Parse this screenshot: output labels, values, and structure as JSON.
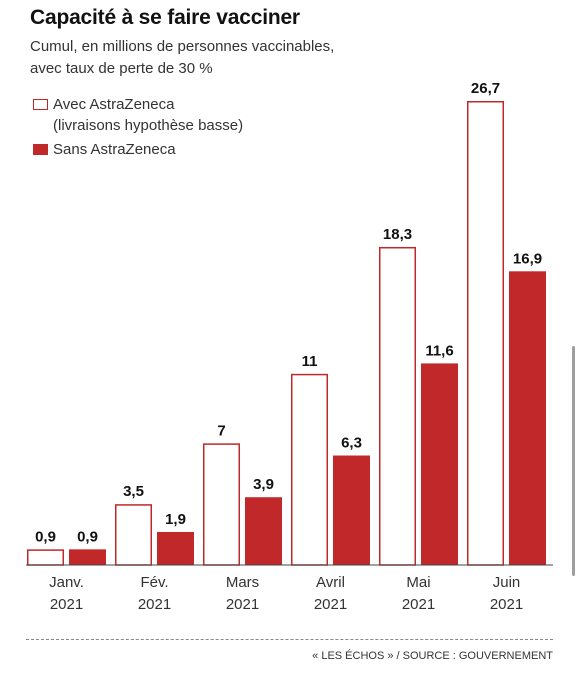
{
  "header": {
    "title": "Capacité à se faire vacciner",
    "subtitle_line1": "Cumul, en millions de personnes vaccinables,",
    "subtitle_line2": "avec taux de perte de 30 %"
  },
  "legend": {
    "items": [
      {
        "label_line1": "Avec AstraZeneca",
        "label_line2": "(livraisons hypothèse basse)"
      },
      {
        "label_line1": "Sans AstraZeneca"
      }
    ]
  },
  "footer": {
    "source": "« LES ÉCHOS » / SOURCE : GOUVERNEMENT"
  },
  "colors": {
    "accent": "#c0282a",
    "outline_fill": "#ffffff",
    "text": "#1a1a1a"
  },
  "chart_data": {
    "type": "bar",
    "categories": [
      {
        "month": "Janv.",
        "year": "2021"
      },
      {
        "month": "Fév.",
        "year": "2021"
      },
      {
        "month": "Mars",
        "year": "2021"
      },
      {
        "month": "Avril",
        "year": "2021"
      },
      {
        "month": "Mai",
        "year": "2021"
      },
      {
        "month": "Juin",
        "year": "2021"
      }
    ],
    "series": [
      {
        "name": "Avec AstraZeneca (livraisons hypothèse basse)",
        "style": "outline",
        "values": [
          0.9,
          3.5,
          7,
          11,
          18.3,
          26.7
        ],
        "labels": [
          "0,9",
          "3,5",
          "7",
          "11",
          "18,3",
          "26,7"
        ]
      },
      {
        "name": "Sans AstraZeneca",
        "style": "filled",
        "values": [
          0.9,
          1.9,
          3.9,
          6.3,
          11.6,
          16.9
        ],
        "labels": [
          "0,9",
          "1,9",
          "3,9",
          "6,3",
          "11,6",
          "16,9"
        ]
      }
    ],
    "ylim": [
      0,
      26.7
    ],
    "grid": false,
    "legend_position": "top-left"
  }
}
